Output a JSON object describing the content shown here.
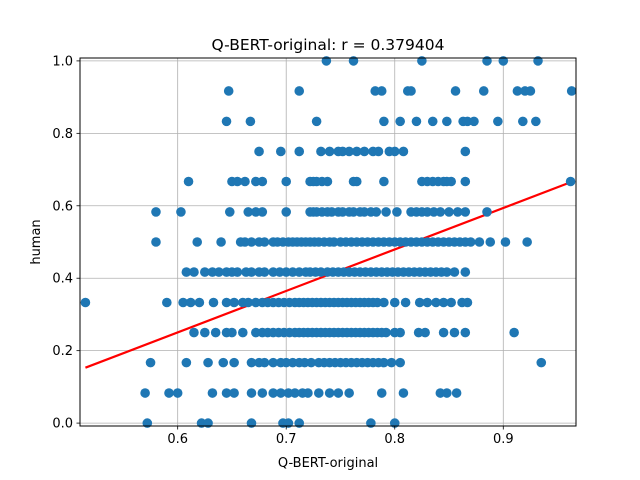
{
  "chart_data": {
    "type": "scatter",
    "title": "Q-BERT-original: r = 0.379404",
    "xlabel": "Q-BERT-original",
    "ylabel": "human",
    "xlim": [
      0.51,
      0.967
    ],
    "ylim": [
      -0.008,
      1.008
    ],
    "grid": true,
    "colors": {
      "points": "#1f77b4",
      "fit_line": "#ff0000"
    },
    "xticks": [
      {
        "value": 0.6,
        "label": "0.6"
      },
      {
        "value": 0.7,
        "label": "0.7"
      },
      {
        "value": 0.8,
        "label": "0.8"
      },
      {
        "value": 0.9,
        "label": "0.9"
      }
    ],
    "yticks": [
      {
        "value": 0.0,
        "label": "0.0"
      },
      {
        "value": 0.2,
        "label": "0.2"
      },
      {
        "value": 0.4,
        "label": "0.4"
      },
      {
        "value": 0.6,
        "label": "0.6"
      },
      {
        "value": 0.8,
        "label": "0.8"
      },
      {
        "value": 1.0,
        "label": "1.0"
      }
    ],
    "fit_line": {
      "x": [
        0.515,
        0.962
      ],
      "y": [
        0.153,
        0.665
      ]
    },
    "series": [
      {
        "rows": [
          {
            "y": 1.0,
            "x": [
              0.737,
              0.762,
              0.825,
              0.885,
              0.9,
              0.932
            ]
          },
          {
            "y": 0.917,
            "x": [
              0.647,
              0.712,
              0.782,
              0.788,
              0.812,
              0.815,
              0.856,
              0.882,
              0.913,
              0.92,
              0.925,
              0.963
            ]
          },
          {
            "y": 0.833,
            "x": [
              0.645,
              0.667,
              0.728,
              0.79,
              0.805,
              0.82,
              0.835,
              0.848,
              0.863,
              0.867,
              0.873,
              0.895,
              0.918,
              0.93
            ]
          },
          {
            "y": 0.75,
            "x": [
              0.675,
              0.695,
              0.712,
              0.732,
              0.74,
              0.748,
              0.752,
              0.758,
              0.765,
              0.772,
              0.78,
              0.785,
              0.795,
              0.8,
              0.808,
              0.865
            ]
          },
          {
            "y": 0.667,
            "x": [
              0.61,
              0.65,
              0.655,
              0.662,
              0.672,
              0.678,
              0.7,
              0.722,
              0.725,
              0.728,
              0.733,
              0.738,
              0.762,
              0.765,
              0.79,
              0.825,
              0.83,
              0.835,
              0.84,
              0.845,
              0.848,
              0.852,
              0.865,
              0.962
            ]
          },
          {
            "y": 0.583,
            "x": [
              0.58,
              0.603,
              0.648,
              0.665,
              0.672,
              0.678,
              0.7,
              0.722,
              0.725,
              0.728,
              0.733,
              0.738,
              0.742,
              0.748,
              0.752,
              0.758,
              0.762,
              0.768,
              0.772,
              0.778,
              0.783,
              0.792,
              0.802,
              0.815,
              0.82,
              0.825,
              0.83,
              0.836,
              0.842,
              0.85,
              0.858,
              0.865,
              0.885
            ]
          },
          {
            "y": 0.5,
            "x": [
              0.58,
              0.618,
              0.64,
              0.658,
              0.662,
              0.668,
              0.675,
              0.68,
              0.688,
              0.692,
              0.697,
              0.702,
              0.706,
              0.71,
              0.714,
              0.718,
              0.722,
              0.726,
              0.73,
              0.735,
              0.74,
              0.744,
              0.75,
              0.755,
              0.76,
              0.765,
              0.77,
              0.775,
              0.78,
              0.785,
              0.79,
              0.795,
              0.8,
              0.805,
              0.81,
              0.815,
              0.82,
              0.825,
              0.83,
              0.835,
              0.84,
              0.845,
              0.85,
              0.855,
              0.86,
              0.865,
              0.87,
              0.878,
              0.888,
              0.902,
              0.922
            ]
          },
          {
            "y": 0.417,
            "x": [
              0.608,
              0.615,
              0.625,
              0.632,
              0.638,
              0.645,
              0.65,
              0.655,
              0.663,
              0.668,
              0.675,
              0.68,
              0.688,
              0.694,
              0.7,
              0.706,
              0.712,
              0.718,
              0.722,
              0.727,
              0.732,
              0.738,
              0.743,
              0.748,
              0.753,
              0.758,
              0.763,
              0.768,
              0.773,
              0.778,
              0.783,
              0.788,
              0.793,
              0.798,
              0.803,
              0.808,
              0.813,
              0.818,
              0.823,
              0.828,
              0.833,
              0.838,
              0.843,
              0.848,
              0.855,
              0.865
            ]
          },
          {
            "y": 0.333,
            "x": [
              0.515,
              0.59,
              0.605,
              0.612,
              0.62,
              0.633,
              0.645,
              0.652,
              0.66,
              0.665,
              0.672,
              0.678,
              0.683,
              0.688,
              0.693,
              0.698,
              0.703,
              0.708,
              0.712,
              0.716,
              0.72,
              0.724,
              0.728,
              0.732,
              0.736,
              0.74,
              0.744,
              0.748,
              0.752,
              0.756,
              0.76,
              0.764,
              0.768,
              0.772,
              0.776,
              0.78,
              0.784,
              0.79,
              0.8,
              0.81,
              0.823,
              0.83,
              0.838,
              0.845,
              0.852,
              0.862,
              0.867
            ]
          },
          {
            "y": 0.25,
            "x": [
              0.615,
              0.625,
              0.635,
              0.645,
              0.65,
              0.66,
              0.672,
              0.678,
              0.683,
              0.688,
              0.693,
              0.698,
              0.703,
              0.708,
              0.712,
              0.716,
              0.72,
              0.724,
              0.728,
              0.732,
              0.736,
              0.74,
              0.744,
              0.748,
              0.752,
              0.756,
              0.76,
              0.764,
              0.768,
              0.772,
              0.776,
              0.78,
              0.784,
              0.788,
              0.792,
              0.8,
              0.805,
              0.822,
              0.828,
              0.845,
              0.855,
              0.865,
              0.91
            ]
          },
          {
            "y": 0.167,
            "x": [
              0.575,
              0.608,
              0.628,
              0.642,
              0.652,
              0.668,
              0.675,
              0.68,
              0.688,
              0.695,
              0.7,
              0.706,
              0.712,
              0.717,
              0.723,
              0.73,
              0.735,
              0.74,
              0.745,
              0.75,
              0.755,
              0.76,
              0.765,
              0.77,
              0.775,
              0.78,
              0.785,
              0.79,
              0.797,
              0.805,
              0.935
            ]
          },
          {
            "y": 0.083,
            "x": [
              0.57,
              0.592,
              0.6,
              0.632,
              0.645,
              0.652,
              0.668,
              0.678,
              0.688,
              0.695,
              0.702,
              0.708,
              0.715,
              0.72,
              0.73,
              0.74,
              0.748,
              0.758,
              0.788,
              0.808,
              0.842,
              0.848,
              0.857
            ]
          },
          {
            "y": 0.0,
            "x": [
              0.572,
              0.622,
              0.628,
              0.668,
              0.697,
              0.702,
              0.712,
              0.778,
              0.8
            ]
          }
        ]
      }
    ]
  }
}
